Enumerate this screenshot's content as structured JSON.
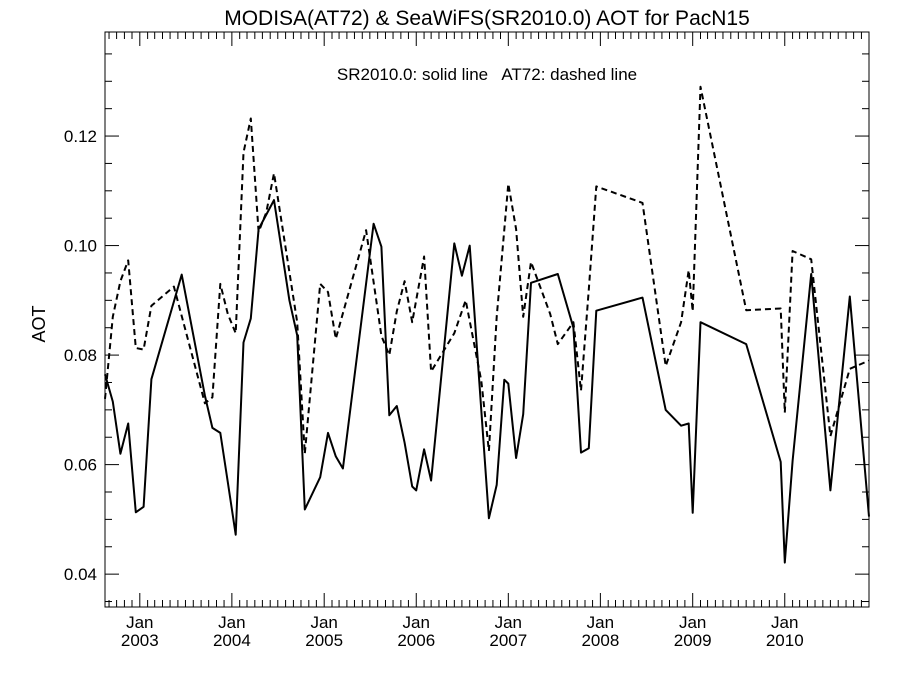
{
  "chart_data": {
    "type": "line",
    "title": "MODISA(AT72) & SeaWiFS(SR2010.0)  AOT for PacN15",
    "annotation": "SR2010.0: solid line   AT72: dashed line",
    "xlabel": "",
    "ylabel": "AOT",
    "xlim": [
      "2002-08-16",
      "2010-12-01"
    ],
    "ylim": [
      0.034,
      0.139
    ],
    "yticks": [
      0.04,
      0.06,
      0.08,
      0.1,
      0.12
    ],
    "ytick_labels": [
      "0.04",
      "0.06",
      "0.08",
      "0.10",
      "0.12"
    ],
    "xticks": [
      {
        "date": "2003-01-01",
        "month": "Jan",
        "year": "2003"
      },
      {
        "date": "2004-01-01",
        "month": "Jan",
        "year": "2004"
      },
      {
        "date": "2005-01-01",
        "month": "Jan",
        "year": "2005"
      },
      {
        "date": "2006-01-01",
        "month": "Jan",
        "year": "2006"
      },
      {
        "date": "2007-01-01",
        "month": "Jan",
        "year": "2007"
      },
      {
        "date": "2008-01-01",
        "month": "Jan",
        "year": "2008"
      },
      {
        "date": "2009-01-01",
        "month": "Jan",
        "year": "2009"
      },
      {
        "date": "2010-01-01",
        "month": "Jan",
        "year": "2010"
      }
    ],
    "grid": false,
    "series": [
      {
        "name": "SR2010.0",
        "style": "solid",
        "color": "#000000",
        "points": [
          [
            "2002-08-16",
            0.0765
          ],
          [
            "2002-09-16",
            0.0715
          ],
          [
            "2002-10-16",
            0.062
          ],
          [
            "2002-11-16",
            0.0675
          ],
          [
            "2002-12-16",
            0.0513
          ],
          [
            "2003-01-16",
            0.0523
          ],
          [
            "2003-02-16",
            0.0756
          ],
          [
            "2003-06-16",
            0.0947
          ],
          [
            "2003-09-16",
            0.0726
          ],
          [
            "2003-10-16",
            0.0667
          ],
          [
            "2003-11-16",
            0.0658
          ],
          [
            "2003-12-16",
            0.0568
          ],
          [
            "2004-01-16",
            0.0472
          ],
          [
            "2004-02-16",
            0.0823
          ],
          [
            "2004-03-16",
            0.0867
          ],
          [
            "2004-04-16",
            0.103
          ],
          [
            "2004-06-16",
            0.1083
          ],
          [
            "2004-08-16",
            0.09
          ],
          [
            "2004-09-16",
            0.0836
          ],
          [
            "2004-10-16",
            0.0518
          ],
          [
            "2004-12-16",
            0.0577
          ],
          [
            "2005-01-16",
            0.0658
          ],
          [
            "2005-02-16",
            0.0615
          ],
          [
            "2005-03-16",
            0.0593
          ],
          [
            "2005-07-16",
            0.104
          ],
          [
            "2005-08-16",
            0.0998
          ],
          [
            "2005-09-16",
            0.069
          ],
          [
            "2005-10-16",
            0.0707
          ],
          [
            "2005-11-16",
            0.064
          ],
          [
            "2005-12-16",
            0.056
          ],
          [
            "2006-01-01",
            0.0553
          ],
          [
            "2006-02-01",
            0.0628
          ],
          [
            "2006-03-01",
            0.0571
          ],
          [
            "2006-06-01",
            0.1004
          ],
          [
            "2006-07-01",
            0.0945
          ],
          [
            "2006-08-01",
            0.1
          ],
          [
            "2006-10-16",
            0.0502
          ],
          [
            "2006-11-16",
            0.0563
          ],
          [
            "2006-12-16",
            0.0755
          ],
          [
            "2007-01-01",
            0.0748
          ],
          [
            "2007-02-01",
            0.0612
          ],
          [
            "2007-03-01",
            0.0692
          ],
          [
            "2007-04-01",
            0.0932
          ],
          [
            "2007-07-16",
            0.0948
          ],
          [
            "2007-09-16",
            0.085
          ],
          [
            "2007-10-16",
            0.0622
          ],
          [
            "2007-11-16",
            0.063
          ],
          [
            "2007-12-16",
            0.0881
          ],
          [
            "2008-06-16",
            0.0905
          ],
          [
            "2008-09-16",
            0.07
          ],
          [
            "2008-11-16",
            0.0671
          ],
          [
            "2008-12-16",
            0.0675
          ],
          [
            "2009-01-01",
            0.0512
          ],
          [
            "2009-02-01",
            0.086
          ],
          [
            "2009-08-01",
            0.082
          ],
          [
            "2009-12-16",
            0.0605
          ],
          [
            "2010-01-01",
            0.0421
          ],
          [
            "2010-02-01",
            0.0607
          ],
          [
            "2010-04-16",
            0.0948
          ],
          [
            "2010-07-01",
            0.0553
          ],
          [
            "2010-09-16",
            0.0907
          ],
          [
            "2010-12-01",
            0.0505
          ]
        ]
      },
      {
        "name": "AT72",
        "style": "dashed",
        "color": "#000000",
        "points": [
          [
            "2002-08-16",
            0.072
          ],
          [
            "2002-09-16",
            0.087
          ],
          [
            "2002-10-16",
            0.0935
          ],
          [
            "2002-11-16",
            0.0973
          ],
          [
            "2002-12-16",
            0.0813
          ],
          [
            "2003-01-16",
            0.081
          ],
          [
            "2003-02-16",
            0.089
          ],
          [
            "2003-05-16",
            0.0925
          ],
          [
            "2003-09-16",
            0.0712
          ],
          [
            "2003-10-16",
            0.0723
          ],
          [
            "2003-11-16",
            0.093
          ],
          [
            "2003-12-16",
            0.0875
          ],
          [
            "2004-01-16",
            0.084
          ],
          [
            "2004-02-16",
            0.117
          ],
          [
            "2004-03-16",
            0.1232
          ],
          [
            "2004-04-16",
            0.1025
          ],
          [
            "2004-05-16",
            0.106
          ],
          [
            "2004-06-16",
            0.1132
          ],
          [
            "2004-09-16",
            0.086
          ],
          [
            "2004-10-16",
            0.062
          ],
          [
            "2004-12-16",
            0.093
          ],
          [
            "2005-01-16",
            0.0915
          ],
          [
            "2005-02-16",
            0.083
          ],
          [
            "2005-06-16",
            0.1028
          ],
          [
            "2005-08-16",
            0.0835
          ],
          [
            "2005-09-16",
            0.08
          ],
          [
            "2005-10-16",
            0.088
          ],
          [
            "2005-11-16",
            0.0935
          ],
          [
            "2005-12-16",
            0.086
          ],
          [
            "2006-02-01",
            0.098
          ],
          [
            "2006-03-01",
            0.077
          ],
          [
            "2006-06-01",
            0.084
          ],
          [
            "2006-07-16",
            0.09
          ],
          [
            "2006-09-16",
            0.0753
          ],
          [
            "2006-10-16",
            0.0625
          ],
          [
            "2006-11-16",
            0.087
          ],
          [
            "2007-01-01",
            0.1113
          ],
          [
            "2007-02-01",
            0.103
          ],
          [
            "2007-03-01",
            0.087
          ],
          [
            "2007-04-01",
            0.097
          ],
          [
            "2007-06-16",
            0.0875
          ],
          [
            "2007-07-16",
            0.082
          ],
          [
            "2007-09-16",
            0.086
          ],
          [
            "2007-10-16",
            0.0735
          ],
          [
            "2007-11-16",
            0.092
          ],
          [
            "2007-12-16",
            0.1108
          ],
          [
            "2008-06-16",
            0.1078
          ],
          [
            "2008-09-16",
            0.078
          ],
          [
            "2008-11-16",
            0.086
          ],
          [
            "2008-12-16",
            0.0955
          ],
          [
            "2009-01-01",
            0.088
          ],
          [
            "2009-02-01",
            0.129
          ],
          [
            "2009-08-01",
            0.0882
          ],
          [
            "2009-12-16",
            0.0885
          ],
          [
            "2010-01-01",
            0.0695
          ],
          [
            "2010-02-01",
            0.099
          ],
          [
            "2010-04-16",
            0.0975
          ],
          [
            "2010-07-01",
            0.0652
          ],
          [
            "2010-09-16",
            0.0775
          ],
          [
            "2010-12-01",
            0.079
          ]
        ]
      }
    ]
  }
}
